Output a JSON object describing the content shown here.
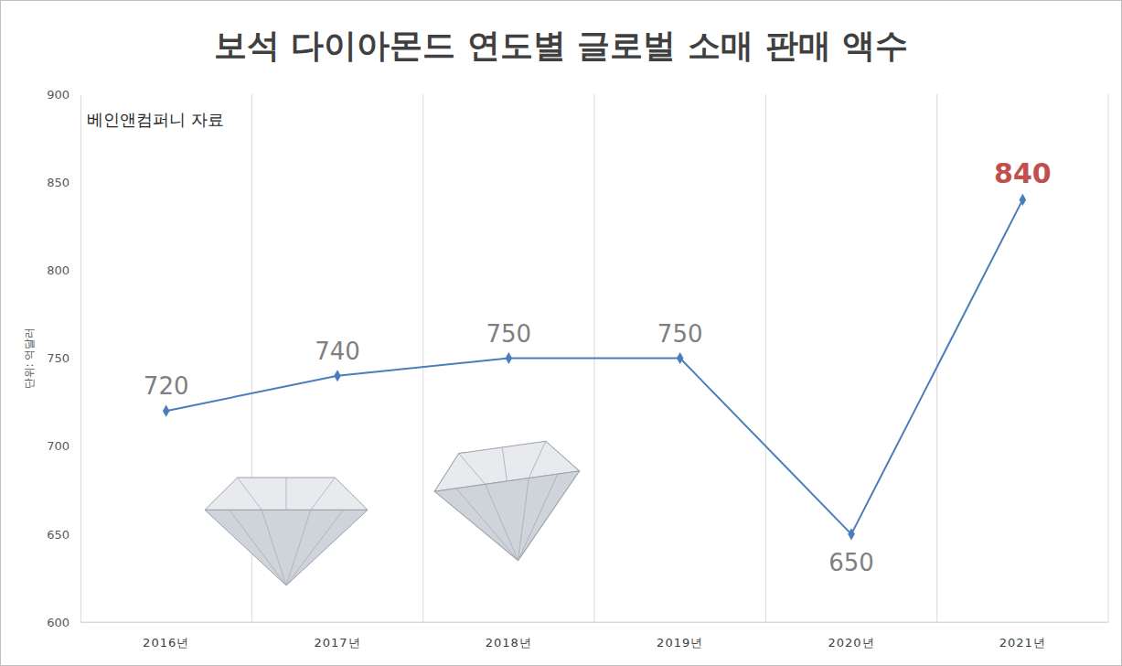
{
  "chart_data": {
    "type": "line",
    "title": "보석 다이아몬드 연도별 글로벌 소매 판매 액수",
    "annotation": "베인앤컴퍼니 자료",
    "y_label": "단위: 억달러",
    "categories": [
      "2016년",
      "2017년",
      "2018년",
      "2019년",
      "2020년",
      "2021년"
    ],
    "values": [
      720,
      740,
      750,
      750,
      650,
      840
    ],
    "color": "#4a7ebb",
    "marker": "diamond",
    "ylim": [
      600,
      900
    ],
    "yticks": [
      600,
      650,
      700,
      750,
      800,
      850,
      900
    ],
    "grid": true,
    "data_labels": true
  }
}
